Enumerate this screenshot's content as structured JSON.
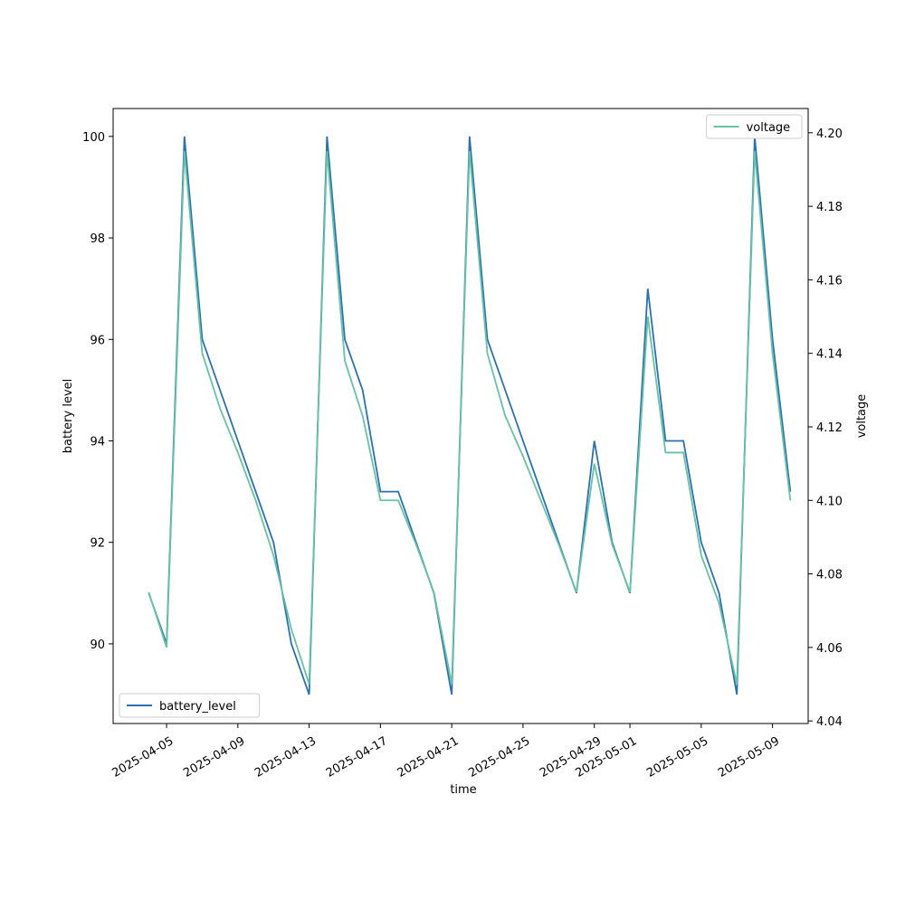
{
  "chart_data": {
    "type": "line",
    "xlabel": "time",
    "ylabel": "battery level",
    "y2label": "voltage",
    "x": [
      "2025-04-04",
      "2025-04-05",
      "2025-04-06",
      "2025-04-07",
      "2025-04-08",
      "2025-04-09",
      "2025-04-10",
      "2025-04-11",
      "2025-04-12",
      "2025-04-13",
      "2025-04-14",
      "2025-04-15",
      "2025-04-16",
      "2025-04-17",
      "2025-04-18",
      "2025-04-19",
      "2025-04-20",
      "2025-04-21",
      "2025-04-22",
      "2025-04-23",
      "2025-04-24",
      "2025-04-25",
      "2025-04-26",
      "2025-04-27",
      "2025-04-28",
      "2025-04-29",
      "2025-04-30",
      "2025-05-01",
      "2025-05-02",
      "2025-05-03",
      "2025-05-04",
      "2025-05-05",
      "2025-05-06",
      "2025-05-07",
      "2025-05-08",
      "2025-05-09",
      "2025-05-10"
    ],
    "series": [
      {
        "name": "battery_level",
        "color": "#2b70b0",
        "axis": "y",
        "legend_loc": "lower left",
        "values": [
          91,
          90,
          100,
          96,
          95,
          94,
          93,
          92,
          90,
          89,
          100,
          96,
          95,
          93,
          93,
          92,
          91,
          89,
          100,
          96,
          95,
          94,
          93,
          92,
          91,
          94,
          92,
          91,
          97,
          94,
          94,
          92,
          91,
          89,
          100,
          96,
          93
        ]
      },
      {
        "name": "voltage",
        "color": "#66c2a5",
        "axis": "y2",
        "legend_loc": "upper right",
        "values": [
          4.075,
          4.06,
          4.195,
          4.14,
          4.125,
          4.113,
          4.1,
          4.085,
          4.065,
          4.05,
          4.195,
          4.138,
          4.123,
          4.1,
          4.1,
          4.088,
          4.075,
          4.05,
          4.195,
          4.14,
          4.123,
          4.112,
          4.1,
          4.088,
          4.075,
          4.11,
          4.088,
          4.075,
          4.15,
          4.113,
          4.113,
          4.085,
          4.072,
          4.05,
          4.195,
          4.14,
          4.1
        ]
      }
    ],
    "xlim": [
      "2025-04-02",
      "2025-05-11"
    ],
    "xticks": [
      "2025-04-05",
      "2025-04-09",
      "2025-04-13",
      "2025-04-17",
      "2025-04-21",
      "2025-04-25",
      "2025-04-29",
      "2025-05-01",
      "2025-05-05",
      "2025-05-09"
    ],
    "ylim": [
      88.43,
      100.55
    ],
    "yticks": [
      90,
      92,
      94,
      96,
      98,
      100
    ],
    "y2lim": [
      4.0393,
      4.2066
    ],
    "y2ticks": [
      {
        "value": 4.04,
        "label": "4.04"
      },
      4.06,
      4.08,
      {
        "value": 4.1,
        "label": "4.10"
      },
      4.12,
      4.14,
      4.16,
      4.18,
      {
        "value": 4.2,
        "label": "4.20"
      }
    ]
  }
}
